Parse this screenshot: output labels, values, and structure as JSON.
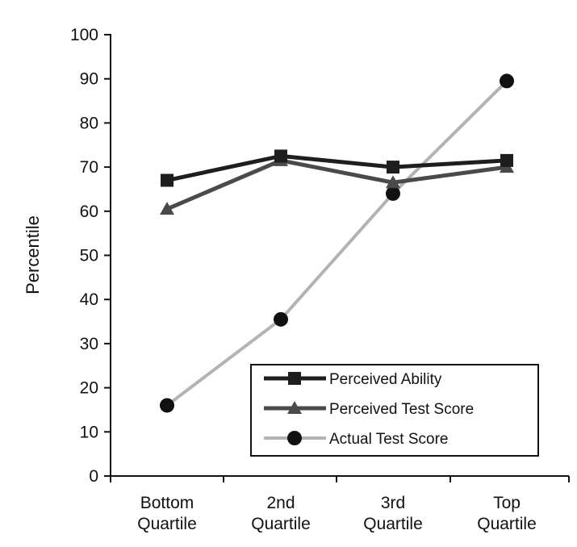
{
  "chart_data": {
    "type": "line",
    "title": "",
    "xlabel": "",
    "ylabel": "Percentile",
    "ylim": [
      0,
      100
    ],
    "yticks": [
      0,
      10,
      20,
      30,
      40,
      50,
      60,
      70,
      80,
      90,
      100
    ],
    "grid": false,
    "legend_position": "bottom-right",
    "categories": [
      [
        "Bottom",
        "Quartile"
      ],
      [
        "2nd",
        "Quartile"
      ],
      [
        "3rd",
        "Quartile"
      ],
      [
        "Top",
        "Quartile"
      ]
    ],
    "series": [
      {
        "name": "Perceived Ability",
        "marker": "square",
        "color": "#1e1e1e",
        "values": [
          67,
          72.5,
          70,
          71.5
        ]
      },
      {
        "name": "Perceived Test Score",
        "marker": "triangle",
        "color": "#4a4a4a",
        "values": [
          60.5,
          71.5,
          66.5,
          70
        ]
      },
      {
        "name": "Actual Test Score",
        "marker": "circle",
        "color": "#b3b3b3",
        "values": [
          16,
          35.5,
          64,
          89.5
        ]
      }
    ]
  }
}
